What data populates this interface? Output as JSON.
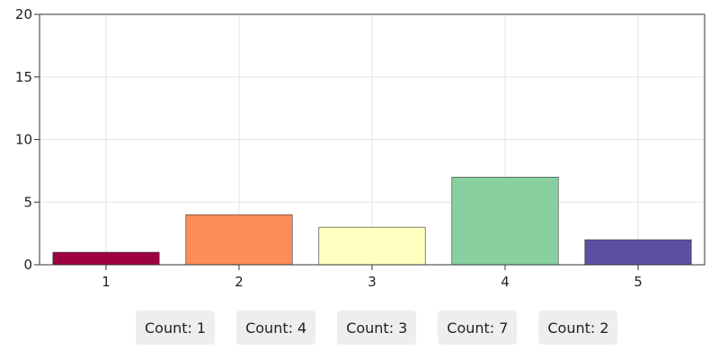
{
  "chart_data": {
    "type": "bar",
    "categories": [
      "1",
      "2",
      "3",
      "4",
      "5"
    ],
    "values": [
      1,
      4,
      3,
      7,
      2
    ],
    "colors": [
      "#9e0142",
      "#fc8d59",
      "#ffffbf",
      "#88d0a0",
      "#5e4fa2"
    ],
    "ylim": [
      0,
      20
    ],
    "yticks": [
      "0",
      "5",
      "10",
      "15",
      "20"
    ],
    "grid": true,
    "title": "",
    "xlabel": "",
    "ylabel": ""
  },
  "badges": {
    "prefix": "Count:",
    "items": [
      {
        "value": "1"
      },
      {
        "value": "4"
      },
      {
        "value": "3"
      },
      {
        "value": "7"
      },
      {
        "value": "2"
      }
    ]
  }
}
